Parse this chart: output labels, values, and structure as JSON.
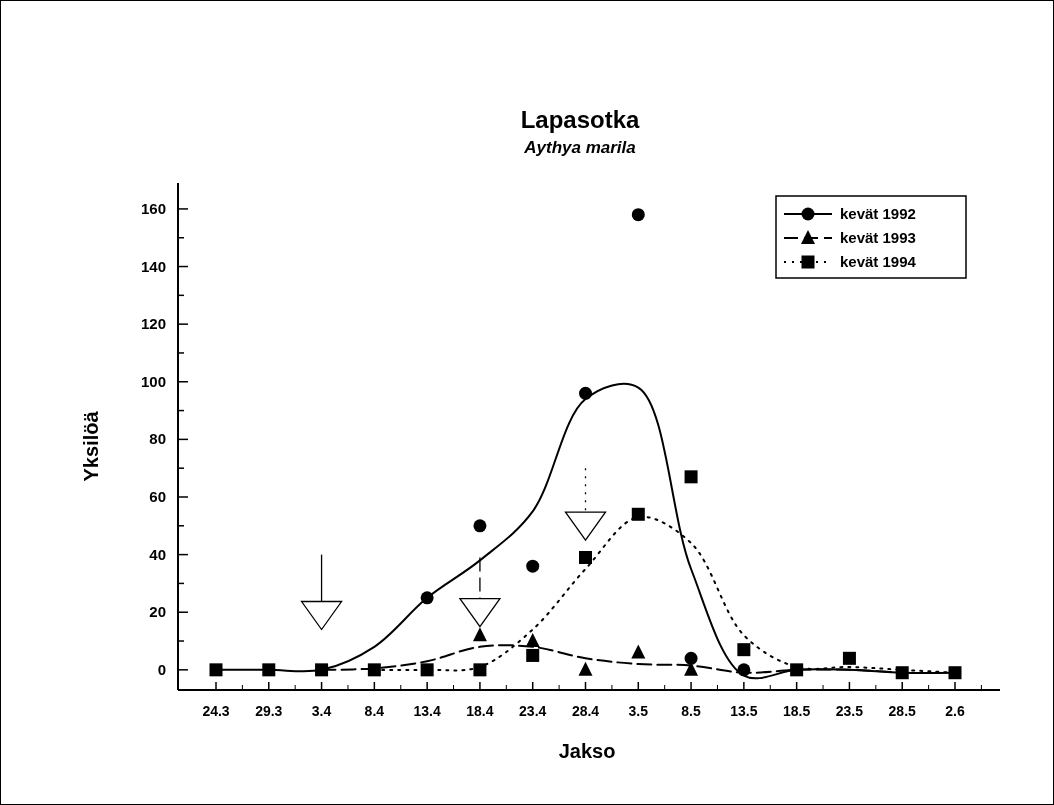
{
  "chart_data": {
    "type": "scatter",
    "title": "Lapasotka",
    "subtitle": "Aythya marila",
    "xlabel": "Jakso",
    "ylabel": "Yksilöä",
    "categories": [
      "24.3",
      "29.3",
      "3.4",
      "8.4",
      "13.4",
      "18.4",
      "23.4",
      "28.4",
      "3.5",
      "8.5",
      "13.5",
      "18.5",
      "23.5",
      "28.5",
      "2.6"
    ],
    "ylim": [
      -7,
      169
    ],
    "yticks": [
      0,
      {
        "value": 10,
        "label": null
      },
      20,
      {
        "value": 30,
        "label": null
      },
      40,
      {
        "value": 50,
        "label": null
      },
      60,
      {
        "value": 70,
        "label": null
      },
      80,
      {
        "value": 90,
        "label": null
      },
      100,
      {
        "value": 110,
        "label": null
      },
      120,
      {
        "value": 130,
        "label": null
      },
      140,
      {
        "value": 150,
        "label": null
      },
      160
    ],
    "grid": false,
    "legend": "top right",
    "series": [
      {
        "name": "kevät 1992",
        "color": "#000000",
        "marker": "circle",
        "line_style": "solid",
        "values": [
          null,
          null,
          null,
          null,
          25,
          50,
          36,
          96,
          158,
          4,
          0,
          null,
          null,
          null,
          null
        ]
      },
      {
        "name": "kevät 1993",
        "color": "#000000",
        "marker": "triangle",
        "line_style": "dashed",
        "values": [
          null,
          null,
          null,
          null,
          null,
          12,
          10,
          0,
          6,
          0,
          null,
          null,
          null,
          null,
          null
        ]
      },
      {
        "name": "kevät 1994",
        "color": "#000000",
        "marker": "square",
        "line_style": "dotted",
        "values": [
          0,
          0,
          0,
          0,
          0,
          0,
          5,
          39,
          54,
          67,
          7,
          0,
          4,
          -1,
          -1
        ]
      },
      {
        "type": "line",
        "color": "#000000",
        "line_style": "solid",
        "marker": "none",
        "values": [
          0,
          0,
          0,
          8,
          25,
          38,
          55,
          94,
          98,
          35,
          -2,
          0,
          0,
          -1,
          -1
        ]
      },
      {
        "type": "line",
        "color": "#000000",
        "line_style": "dashed",
        "marker": "none",
        "values": [
          null,
          null,
          0,
          0.5,
          3,
          8,
          8,
          4,
          2,
          1.5,
          -1,
          0,
          0,
          -1,
          null
        ]
      },
      {
        "type": "line",
        "color": "#000000",
        "line_style": "dotted",
        "marker": "none",
        "values": [
          null,
          null,
          null,
          0,
          0,
          1,
          14,
          35,
          53,
          44,
          12,
          1,
          1,
          0,
          -1
        ]
      }
    ]
  }
}
